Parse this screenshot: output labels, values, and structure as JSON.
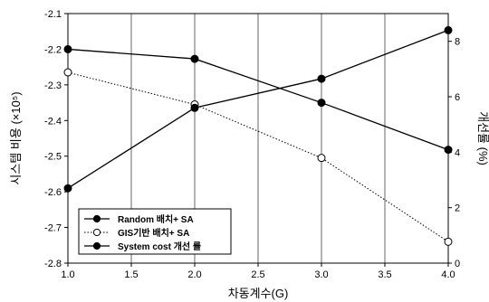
{
  "chart_data": {
    "type": "line",
    "xlabel": "차동계수(G)",
    "ylabel_left": "시스템 비용 (×10⁵)",
    "ylabel_right": "개선률 (%)",
    "xlim": [
      1.0,
      4.0
    ],
    "ylim_left": [
      -2.8,
      -2.1
    ],
    "ylim_right": [
      0,
      9
    ],
    "x_ticks": [
      "1.0",
      "1.5",
      "2.0",
      "2.5",
      "3.0",
      "3.5",
      "4.0"
    ],
    "y_left_ticks": [
      "-2.1",
      "-2.2",
      "-2.3",
      "-2.4",
      "-2.5",
      "-2.6",
      "-2.7",
      "-2.8"
    ],
    "y_right_ticks": [
      "0",
      "2",
      "4",
      "6",
      "8"
    ],
    "grid": "vertical",
    "legend_position": "bottom-left",
    "x": [
      1.0,
      2.0,
      3.0,
      4.0
    ],
    "series": [
      {
        "name": "Random 배치+ SA",
        "axis": "left",
        "values": [
          -2.2,
          -2.227,
          -2.35,
          -2.482
        ],
        "marker": "filled-circle",
        "line": "solid"
      },
      {
        "name": "GIS기반 배치+ SA",
        "axis": "left",
        "values": [
          -2.265,
          -2.355,
          -2.505,
          -2.74
        ],
        "marker": "open-circle",
        "line": "dotted"
      },
      {
        "name": "System cost 개선 률",
        "axis": "right",
        "values": [
          2.7,
          5.6,
          6.65,
          8.4
        ],
        "marker": "filled-circle",
        "line": "solid"
      }
    ]
  }
}
